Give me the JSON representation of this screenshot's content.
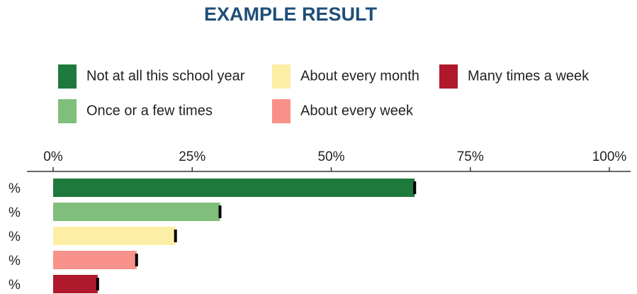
{
  "chart_data": {
    "type": "bar",
    "orientation": "horizontal",
    "title": "EXAMPLE RESULT",
    "categories": [
      "%",
      "%",
      "%",
      "%",
      "%"
    ],
    "values": [
      65,
      30,
      22,
      15,
      8
    ],
    "colors": [
      "#1e7a3c",
      "#7fbf7b",
      "#fdeea6",
      "#f7918a",
      "#b0182b"
    ],
    "legend": [
      "Not at all this school year",
      "Once or a few times",
      "About every month",
      "About every week",
      "Many times a week"
    ],
    "xlim": [
      0,
      100
    ],
    "xticks": [
      {
        "value": 0,
        "label": "0%"
      },
      {
        "value": 25,
        "label": "25%"
      },
      {
        "value": 50,
        "label": "50%"
      },
      {
        "value": 75,
        "label": "75%"
      },
      {
        "value": 100,
        "label": "100%"
      }
    ],
    "grid": false
  }
}
